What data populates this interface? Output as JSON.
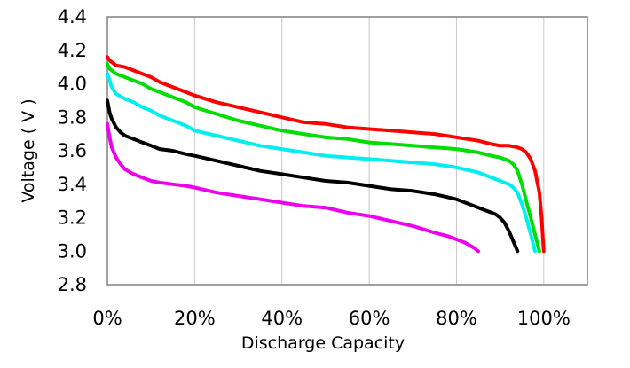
{
  "chart_data": {
    "type": "line",
    "title": "",
    "xlabel": "Discharge Capacity",
    "ylabel": "Voltage ( V )",
    "xlim": [
      0,
      110
    ],
    "ylim": [
      2.8,
      4.4
    ],
    "x_ticks": [
      0,
      20,
      40,
      60,
      80,
      100
    ],
    "x_tick_labels": [
      "0%",
      "20%",
      "40%",
      "60%",
      "80%",
      "100%"
    ],
    "y_ticks": [
      2.8,
      3.0,
      3.2,
      3.4,
      3.6,
      3.8,
      4.0,
      4.2,
      4.4
    ],
    "y_tick_labels": [
      "2.8",
      "3.0",
      "3.2",
      "3.4",
      "3.6",
      "3.8",
      "4.0",
      "4.2",
      "4.4"
    ],
    "grid": "vertical",
    "legend": "none",
    "series": [
      {
        "color": "#ff0000",
        "x": [
          0,
          0.5,
          1,
          2,
          4,
          6,
          8,
          10,
          12,
          15,
          18,
          20,
          25,
          30,
          35,
          40,
          45,
          50,
          55,
          60,
          65,
          70,
          75,
          80,
          85,
          88,
          90,
          92,
          94,
          95,
          96,
          97,
          98,
          99,
          99.5,
          99.8,
          100
        ],
        "y": [
          4.16,
          4.14,
          4.13,
          4.11,
          4.1,
          4.08,
          4.06,
          4.04,
          4.01,
          3.98,
          3.95,
          3.93,
          3.89,
          3.86,
          3.83,
          3.8,
          3.77,
          3.76,
          3.74,
          3.73,
          3.72,
          3.71,
          3.7,
          3.68,
          3.66,
          3.64,
          3.63,
          3.63,
          3.62,
          3.61,
          3.59,
          3.55,
          3.48,
          3.35,
          3.2,
          3.08,
          3.0
        ]
      },
      {
        "color": "#00dd00",
        "x": [
          0,
          0.5,
          1,
          2,
          4,
          6,
          8,
          10,
          12,
          15,
          18,
          20,
          25,
          30,
          35,
          40,
          45,
          50,
          55,
          60,
          65,
          70,
          75,
          80,
          85,
          88,
          90,
          92,
          93,
          94,
          95,
          96,
          97,
          98,
          98.5,
          99
        ],
        "y": [
          4.12,
          4.09,
          4.08,
          4.06,
          4.04,
          4.02,
          4.0,
          3.97,
          3.95,
          3.92,
          3.89,
          3.86,
          3.82,
          3.78,
          3.75,
          3.72,
          3.7,
          3.68,
          3.67,
          3.65,
          3.64,
          3.63,
          3.62,
          3.61,
          3.59,
          3.57,
          3.56,
          3.54,
          3.52,
          3.48,
          3.4,
          3.3,
          3.2,
          3.1,
          3.05,
          3.0
        ]
      },
      {
        "color": "#00eeee",
        "x": [
          0,
          0.5,
          1,
          2,
          4,
          6,
          8,
          10,
          12,
          15,
          18,
          20,
          25,
          30,
          35,
          40,
          45,
          50,
          55,
          60,
          65,
          70,
          75,
          80,
          85,
          88,
          90,
          92,
          93,
          94,
          95,
          96,
          97,
          97.5,
          98
        ],
        "y": [
          4.06,
          4.02,
          3.98,
          3.94,
          3.91,
          3.89,
          3.86,
          3.84,
          3.81,
          3.78,
          3.75,
          3.72,
          3.69,
          3.66,
          3.63,
          3.61,
          3.59,
          3.57,
          3.56,
          3.55,
          3.54,
          3.53,
          3.52,
          3.5,
          3.47,
          3.44,
          3.42,
          3.4,
          3.38,
          3.35,
          3.28,
          3.2,
          3.1,
          3.05,
          3.0
        ]
      },
      {
        "color": "#000000",
        "x": [
          0,
          0.5,
          1,
          2,
          3,
          4,
          6,
          8,
          10,
          12,
          15,
          18,
          20,
          25,
          30,
          35,
          40,
          45,
          50,
          55,
          60,
          65,
          70,
          75,
          80,
          82,
          84,
          86,
          88,
          89,
          90,
          91,
          92,
          93,
          94
        ],
        "y": [
          3.9,
          3.83,
          3.79,
          3.74,
          3.71,
          3.69,
          3.67,
          3.65,
          3.63,
          3.61,
          3.6,
          3.58,
          3.57,
          3.54,
          3.51,
          3.48,
          3.46,
          3.44,
          3.42,
          3.41,
          3.39,
          3.37,
          3.36,
          3.34,
          3.31,
          3.29,
          3.27,
          3.25,
          3.23,
          3.22,
          3.2,
          3.17,
          3.12,
          3.06,
          3.0
        ]
      },
      {
        "color": "#ee00ee",
        "x": [
          0,
          0.5,
          1,
          2,
          3,
          4,
          6,
          8,
          10,
          12,
          15,
          18,
          20,
          25,
          30,
          35,
          40,
          45,
          50,
          55,
          60,
          65,
          70,
          75,
          78,
          80,
          82,
          84,
          85
        ],
        "y": [
          3.76,
          3.68,
          3.62,
          3.56,
          3.52,
          3.49,
          3.46,
          3.44,
          3.42,
          3.41,
          3.4,
          3.39,
          3.38,
          3.35,
          3.33,
          3.31,
          3.29,
          3.27,
          3.26,
          3.23,
          3.21,
          3.18,
          3.15,
          3.11,
          3.09,
          3.07,
          3.05,
          3.02,
          3.0
        ]
      }
    ]
  }
}
